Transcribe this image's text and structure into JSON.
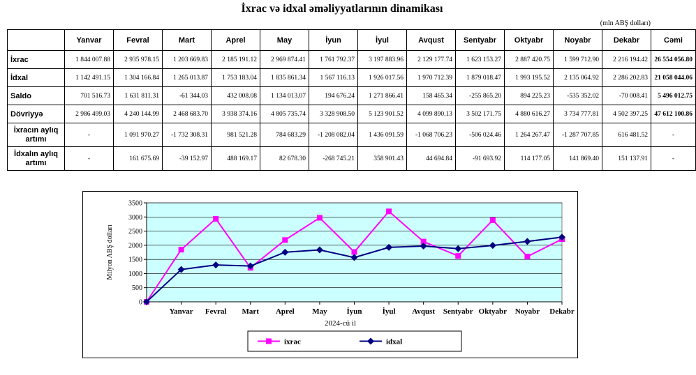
{
  "title": "İxrac və idxal əməliyyatlarının dinamikası",
  "unit": "(mln ABŞ dolları)",
  "table": {
    "headers": [
      "",
      "Yanvar",
      "Fevral",
      "Mart",
      "Aprel",
      "May",
      "İyun",
      "İyul",
      "Avqust",
      "Sentyabr",
      "Oktyabr",
      "Noyabr",
      "Dekabr",
      "Cəmi"
    ],
    "rows": [
      {
        "label": "İxrac",
        "cells": [
          "1 844 007.88",
          "2 935 978.15",
          "1 203 669.83",
          "2 185 191.12",
          "2 969 874.41",
          "1 761 792.37",
          "3 197 883.96",
          "2 129 177.74",
          "1 623 153.27",
          "2 887 420.75",
          "1 599 712.90",
          "2 216 194.42",
          "26 554 056.80"
        ]
      },
      {
        "label": "İdxal",
        "cells": [
          "1 142 491.15",
          "1 304 166.84",
          "1 265 013.87",
          "1 753 183.04",
          "1 835 861.34",
          "1 567 116.13",
          "1 926 017.56",
          "1 970 712.39",
          "1 879 018.47",
          "1 993 195.52",
          "2 135 064.92",
          "2 286 202.83",
          "21 058 044.06"
        ]
      },
      {
        "label": "Saldo",
        "cells": [
          "701 516.73",
          "1 631 811.31",
          "-61 344.03",
          "432 008.08",
          "1 134 013.07",
          "194 676.24",
          "1 271 866.41",
          "158 465.34",
          "-255 865.20",
          "894 225.23",
          "-535 352.02",
          "-70 008.41",
          "5 496 012.75"
        ]
      },
      {
        "label": "Dövriyyə",
        "cells": [
          "2 986 499.03",
          "4 240 144.99",
          "2 468 683.70",
          "3 938 374.16",
          "4 805 735.74",
          "3 328 908.50",
          "5 123 901.52",
          "4 099 890.13",
          "3 502 171.75",
          "4 880 616.27",
          "3 734 777.81",
          "4 502 397.25",
          "47 612 100.86"
        ]
      },
      {
        "label_lines": [
          "İxracın aylıq",
          "artımı"
        ],
        "cells": [
          "-",
          "1 091 970.27",
          "-1 732 308.31",
          "981 521.28",
          "784 683.29",
          "-1 208 082.04",
          "1 436 091.59",
          "-1 068 706.23",
          "-506 024.46",
          "1 264 267.47",
          "-1 287 707.85",
          "616 481.52",
          "-"
        ]
      },
      {
        "label_lines": [
          "İdxalın aylıq",
          "artımı"
        ],
        "cells": [
          "-",
          "161 675.69",
          "-39 152.97",
          "488 169.17",
          "82 678.30",
          "-268 745.21",
          "358 901.43",
          "44 694.84",
          "-91 693.92",
          "114 177.05",
          "141 869.40",
          "151 137.91",
          "-"
        ]
      }
    ]
  },
  "chart_data": {
    "type": "line",
    "categories": [
      "",
      "Yanvar",
      "Fevral",
      "Mart",
      "Aprel",
      "May",
      "İyun",
      "İyul",
      "Avqust",
      "Sentyabr",
      "Oktyabr",
      "Noyabr",
      "Dekabr"
    ],
    "series": [
      {
        "name": "ixrac",
        "values": [
          0,
          1844.0,
          2936.0,
          1203.7,
          2185.2,
          2969.9,
          1761.8,
          3197.9,
          2129.2,
          1623.2,
          2887.4,
          1599.7,
          2216.2
        ],
        "color": "#ff00ff",
        "marker": "square"
      },
      {
        "name": "idxal",
        "values": [
          0,
          1142.5,
          1304.2,
          1265.0,
          1753.2,
          1835.9,
          1567.1,
          1926.0,
          1970.7,
          1879.0,
          1993.2,
          2135.1,
          2286.2
        ],
        "color": "#000080",
        "marker": "diamond"
      }
    ],
    "xlabel": "2024-cü il",
    "ylabel": "Milyon ABŞ dolları",
    "ylim": [
      0,
      3500
    ],
    "yticks": [
      0,
      500,
      1000,
      1500,
      2000,
      2500,
      3000,
      3500
    ],
    "grid": true,
    "plot_background": "#ccffff",
    "legend_position": "bottom"
  }
}
